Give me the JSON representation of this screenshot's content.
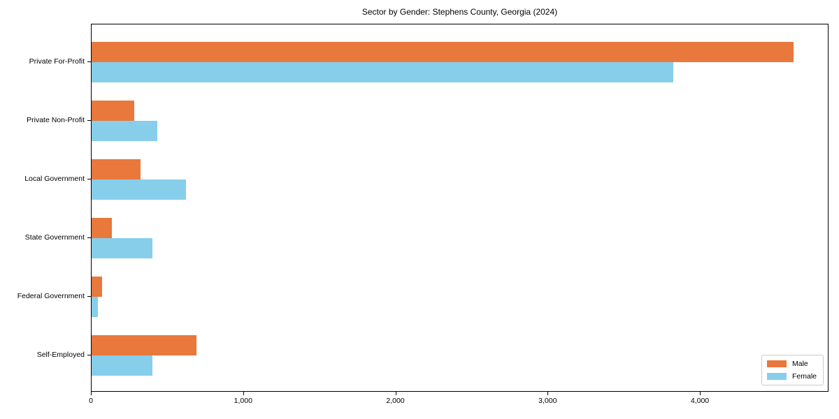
{
  "title": "Sector by Gender: Stephens County, Georgia (2024)",
  "colors": {
    "male": "#E8783C",
    "female": "#87CEEB",
    "axis": "#000000",
    "legend_border": "#CCCCCC",
    "background": "#FFFFFF"
  },
  "chart_data": {
    "type": "bar",
    "orientation": "horizontal",
    "title": "Sector by Gender: Stephens County, Georgia (2024)",
    "categories": [
      "Private For-Profit",
      "Private Non-Profit",
      "Local Government",
      "State Government",
      "Federal Government",
      "Self-Employed"
    ],
    "series": [
      {
        "name": "Male",
        "color_key": "male",
        "values": [
          4610,
          280,
          320,
          135,
          70,
          690
        ]
      },
      {
        "name": "Female",
        "color_key": "female",
        "values": [
          3820,
          430,
          620,
          400,
          40,
          400
        ]
      }
    ],
    "xlabel": "",
    "ylabel": "",
    "xlim": [
      0,
      4845
    ],
    "xticks": [
      0,
      1000,
      2000,
      3000,
      4000
    ],
    "xtick_labels": [
      "0",
      "1,000",
      "2,000",
      "3,000",
      "4,000"
    ],
    "grid": false,
    "legend": {
      "position": "lower right",
      "entries": [
        "Male",
        "Female"
      ]
    }
  }
}
